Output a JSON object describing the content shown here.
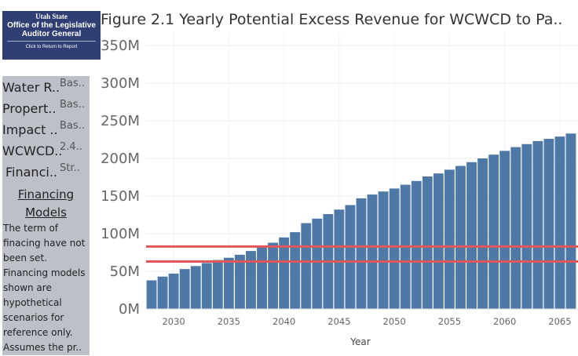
{
  "logo": {
    "line1": "Utah State",
    "line2a": "Office of the Legislative",
    "line2b": "Auditor General",
    "line3": "Click to Return to Report"
  },
  "title": "Figure 2.1 Yearly Potential Excess Revenue for WCWCD to Pa..",
  "panel": {
    "params": [
      {
        "label": "Water R..",
        "value": "Bas.."
      },
      {
        "label": "Propert..",
        "value": "Bas.."
      },
      {
        "label": "Impact ..",
        "value": "Bas.."
      },
      {
        "label": "WCWCD..",
        "value": "2.4.."
      },
      {
        "label": "Financi..",
        "value": "Str.."
      }
    ],
    "financing_title_1": "Financing",
    "financing_title_2": "Models",
    "financing_desc": "The term of finacing have not been set. Financing models shown are hypothetical scenarios for reference only. Assumes the pr.."
  },
  "colors": {
    "bar": "#4e79a7",
    "ref_line": "#e15759",
    "panel_bg": "#bcc0c8",
    "logo_bg": "#2f3f73"
  },
  "chart_data": {
    "type": "bar",
    "title": "Figure 2.1 Yearly Potential Excess Revenue for WCWCD to Pa..",
    "xlabel": "Year",
    "ylabel": "",
    "x": [
      2028,
      2029,
      2030,
      2031,
      2032,
      2033,
      2034,
      2035,
      2036,
      2037,
      2038,
      2039,
      2040,
      2041,
      2042,
      2043,
      2044,
      2045,
      2046,
      2047,
      2048,
      2049,
      2050,
      2051,
      2052,
      2053,
      2054,
      2055,
      2056,
      2057,
      2058,
      2059,
      2060,
      2061,
      2062,
      2063,
      2064,
      2065,
      2066
    ],
    "values": [
      38,
      43,
      47,
      53,
      57,
      61,
      65,
      68,
      72,
      77,
      83,
      88,
      95,
      102,
      114,
      120,
      126,
      132,
      138,
      147,
      152,
      156,
      160,
      165,
      170,
      176,
      180,
      185,
      190,
      195,
      200,
      205,
      210,
      215,
      219,
      223,
      226,
      229,
      233
    ],
    "value_unit": "M",
    "x_ticks": [
      "2030",
      "2035",
      "2040",
      "2045",
      "2050",
      "2055",
      "2060",
      "2065"
    ],
    "y_ticks": [
      "0M",
      "50M",
      "100M",
      "150M",
      "200M",
      "250M",
      "300M",
      "350M"
    ],
    "ylim": [
      0,
      350
    ],
    "reference_lines": [
      83,
      63
    ],
    "grid": true,
    "legend": "none"
  }
}
